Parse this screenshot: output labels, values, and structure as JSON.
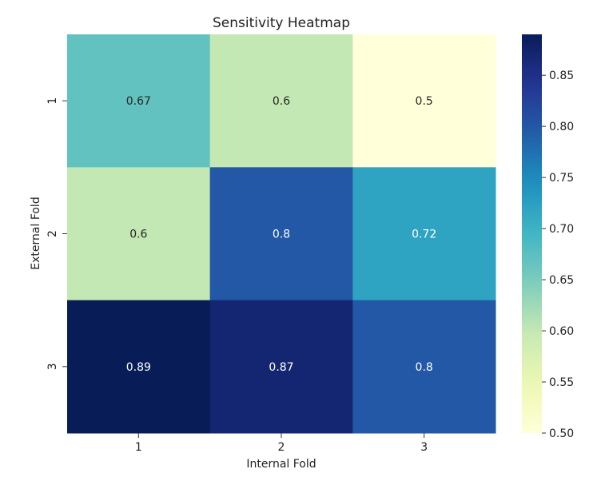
{
  "chart_data": {
    "type": "heatmap",
    "title": "Sensitivity Heatmap",
    "xlabel": "Internal Fold",
    "ylabel": "External Fold",
    "x_categories": [
      "1",
      "2",
      "3"
    ],
    "y_categories": [
      "1",
      "2",
      "3"
    ],
    "values": [
      [
        0.67,
        0.6,
        0.5
      ],
      [
        0.6,
        0.8,
        0.72
      ],
      [
        0.89,
        0.87,
        0.8
      ]
    ],
    "cell_labels": [
      [
        "0.67",
        "0.6",
        "0.5"
      ],
      [
        "0.6",
        "0.8",
        "0.72"
      ],
      [
        "0.89",
        "0.87",
        "0.8"
      ]
    ],
    "colormap": "YlGnBu",
    "color_range": [
      0.5,
      0.89
    ],
    "colorbar_ticks": [
      "0.50",
      "0.55",
      "0.60",
      "0.65",
      "0.70",
      "0.75",
      "0.80",
      "0.85"
    ]
  }
}
